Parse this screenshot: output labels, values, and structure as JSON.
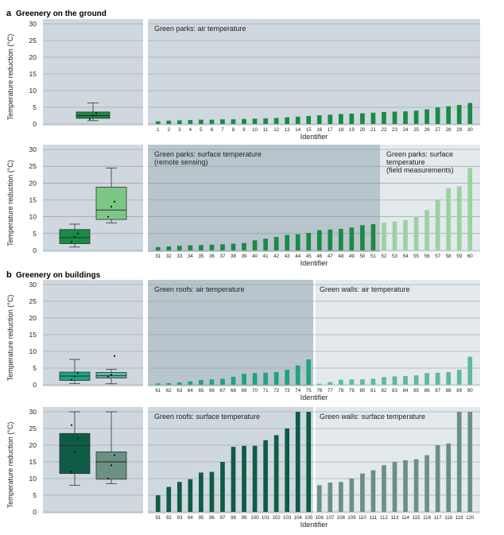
{
  "colors": {
    "panel_bg": "#cfd8de",
    "panel_bg_dark": "#b9c5cd",
    "panel_bg_light": "#e3e9ed",
    "grid": "#8a979e",
    "green_dark": "#1a8a45",
    "green_light": "#9ad29f",
    "green_mid_light": "#7cc786",
    "teal": "#1fa37f",
    "teal_light": "#5fb8a0",
    "dark_teal": "#0f5c46",
    "grey_teal": "#6a9184"
  },
  "sections": [
    {
      "letter": "a",
      "title": "Greenery on the ground"
    },
    {
      "letter": "b",
      "title": "Greenery on buildings"
    }
  ],
  "axis": {
    "ylabel": "Temperature reduction (°C)",
    "xlabel": "Identifier",
    "yticks": [
      "0",
      "5",
      "10",
      "15",
      "20",
      "25",
      "30"
    ]
  },
  "chart_data": [
    {
      "type": "bar+box",
      "id": "row1",
      "ylim": [
        0,
        30
      ],
      "groups": [
        {
          "label": "Green parks: air temperature",
          "color": "#1a8a45",
          "ids": [
            "1",
            "2",
            "3",
            "4",
            "5",
            "6",
            "7",
            "8",
            "9",
            "10",
            "11",
            "12",
            "13",
            "14",
            "15",
            "16",
            "17",
            "18",
            "19",
            "20",
            "21",
            "22",
            "23",
            "24",
            "25",
            "26",
            "27",
            "28",
            "29",
            "30"
          ],
          "values": [
            0.8,
            1.0,
            1.1,
            1.2,
            1.3,
            1.3,
            1.4,
            1.4,
            1.5,
            1.6,
            1.7,
            1.8,
            2.0,
            2.2,
            2.4,
            2.6,
            2.8,
            3.0,
            3.1,
            3.2,
            3.4,
            3.6,
            3.7,
            3.8,
            4.0,
            4.4,
            5.0,
            5.3,
            5.7,
            6.3
          ]
        }
      ],
      "boxes": [
        {
          "color": "#1a8a45",
          "min": 1.0,
          "q1": 1.7,
          "median": 2.5,
          "q3": 3.6,
          "max": 6.3,
          "points": [
            1.5,
            2.5,
            3.2
          ]
        }
      ]
    },
    {
      "type": "bar+box",
      "id": "row2",
      "ylim": [
        0,
        30
      ],
      "groups": [
        {
          "label": "Green parks: surface temperature (remote sensing)",
          "label_lines": [
            "Green parks: surface temperature",
            "(remote sensing)"
          ],
          "color": "#1a8a45",
          "ids": [
            "31",
            "32",
            "33",
            "34",
            "35",
            "36",
            "37",
            "38",
            "39",
            "40",
            "41",
            "42",
            "43",
            "44",
            "45",
            "46",
            "47",
            "48",
            "49",
            "50",
            "51"
          ],
          "values": [
            1.0,
            1.2,
            1.4,
            1.5,
            1.6,
            1.7,
            1.8,
            2.0,
            2.2,
            3.0,
            3.5,
            4.0,
            4.6,
            4.8,
            5.2,
            6.0,
            6.2,
            6.4,
            6.8,
            7.5,
            7.8
          ]
        },
        {
          "label": "Green parks: surface temperature (field measurements)",
          "label_lines": [
            "Green parks: surface",
            "temperature",
            "(field measurements)"
          ],
          "color": "#9ad29f",
          "ids": [
            "52",
            "53",
            "54",
            "55",
            "56",
            "57",
            "58",
            "59",
            "60"
          ],
          "values": [
            8.2,
            8.6,
            9.0,
            10.0,
            12.0,
            15.0,
            18.5,
            19.0,
            24.5
          ]
        }
      ],
      "boxes": [
        {
          "color": "#1a8a45",
          "min": 1.0,
          "q1": 2.0,
          "median": 3.8,
          "q3": 6.2,
          "max": 7.8,
          "points": [
            2.5,
            4.0,
            5.0
          ]
        },
        {
          "color": "#7cc786",
          "min": 8.2,
          "q1": 9.2,
          "median": 12.0,
          "q3": 18.8,
          "max": 24.5,
          "points": [
            10.0,
            13.0,
            14.5
          ]
        }
      ]
    },
    {
      "type": "bar+box",
      "id": "row3",
      "ylim": [
        0,
        30
      ],
      "groups": [
        {
          "label": "Green roofs: air temperature",
          "color": "#1fa37f",
          "ids": [
            "61",
            "62",
            "63",
            "64",
            "65",
            "66",
            "67",
            "68",
            "69",
            "70",
            "71",
            "72",
            "73",
            "74",
            "75"
          ],
          "values": [
            0.4,
            0.5,
            0.7,
            1.0,
            1.4,
            1.6,
            1.8,
            2.4,
            3.3,
            3.5,
            3.6,
            3.8,
            4.5,
            5.8,
            7.6
          ]
        },
        {
          "label": "Green walls: air temperature",
          "color": "#5fb8a0",
          "ids": [
            "76",
            "77",
            "78",
            "79",
            "80",
            "81",
            "82",
            "83",
            "84",
            "85",
            "86",
            "87",
            "88",
            "89",
            "90"
          ],
          "values": [
            0.3,
            0.8,
            1.5,
            1.6,
            1.6,
            1.8,
            2.3,
            2.5,
            2.6,
            2.8,
            3.5,
            3.6,
            3.8,
            4.5,
            8.4
          ]
        }
      ],
      "boxes": [
        {
          "color": "#1fa37f",
          "min": 0.4,
          "q1": 1.3,
          "median": 2.6,
          "q3": 3.8,
          "max": 7.6,
          "points": [
            1.5,
            2.5,
            3.5
          ]
        },
        {
          "color": "#5fb8a0",
          "min": 0.3,
          "q1": 2.0,
          "median": 2.7,
          "q3": 3.7,
          "max": 4.6,
          "points": [
            2.5,
            3.0,
            8.6
          ]
        }
      ]
    },
    {
      "type": "bar+box",
      "id": "row4",
      "ylim": [
        0,
        30
      ],
      "groups": [
        {
          "label": "Green roofs: surface temperature",
          "color": "#0f5c46",
          "ids": [
            "91",
            "92",
            "93",
            "94",
            "95",
            "96",
            "97",
            "98",
            "99",
            "100",
            "101",
            "102",
            "103",
            "104",
            "105"
          ],
          "values": [
            5.0,
            7.5,
            9.0,
            9.8,
            11.8,
            12.0,
            15.0,
            19.5,
            19.8,
            19.8,
            21.5,
            23.0,
            25.0,
            30.0,
            30.0
          ]
        },
        {
          "label": "Green walls: surface temperature",
          "color": "#6a9184",
          "ids": [
            "106",
            "107",
            "108",
            "109",
            "110",
            "111",
            "112",
            "113",
            "114",
            "115",
            "116",
            "117",
            "118",
            "119",
            "120"
          ],
          "values": [
            8.0,
            8.8,
            9.0,
            10.0,
            11.5,
            12.5,
            14.0,
            15.0,
            15.5,
            15.8,
            17.0,
            20.0,
            20.5,
            30.0,
            31.5
          ]
        }
      ],
      "boxes": [
        {
          "color": "#0f5c46",
          "min": 8.0,
          "q1": 11.5,
          "median": 19.8,
          "q3": 23.5,
          "max": 30.0,
          "points": [
            12.0,
            18.0,
            22.0,
            26.0
          ]
        },
        {
          "color": "#6a9184",
          "min": 8.5,
          "q1": 9.8,
          "median": 15.0,
          "q3": 18.0,
          "max": 30.0,
          "points": [
            10.0,
            14.0,
            17.0
          ]
        }
      ]
    }
  ]
}
